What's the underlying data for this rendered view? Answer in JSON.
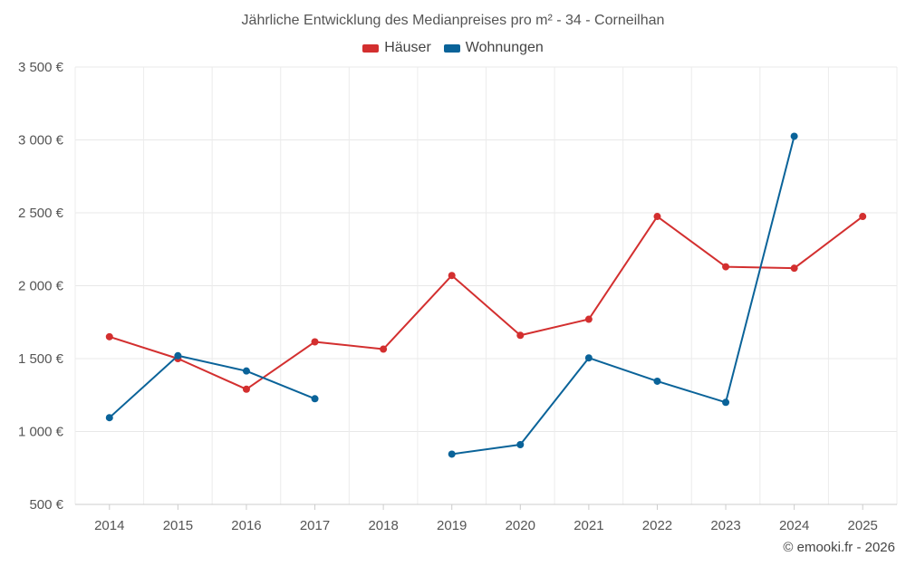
{
  "title": "Jährliche Entwicklung des Medianpreises pro m² - 34 - Corneilhan",
  "credit": "© emooki.fr - 2026",
  "chart_data": {
    "type": "line",
    "title": "Jährliche Entwicklung des Medianpreises pro m² - 34 - Corneilhan",
    "xlabel": "",
    "ylabel": "",
    "categories": [
      "2014",
      "2015",
      "2016",
      "2017",
      "2018",
      "2019",
      "2020",
      "2021",
      "2022",
      "2023",
      "2024",
      "2025"
    ],
    "ylim": [
      500,
      3500
    ],
    "y_ticks": [
      500,
      1000,
      1500,
      2000,
      2500,
      3000,
      3500
    ],
    "y_tick_labels": [
      "500 €",
      "1 000 €",
      "1 500 €",
      "2 000 €",
      "2 500 €",
      "3 000 €",
      "3 500 €"
    ],
    "grid": true,
    "legend_position": "top-center",
    "series": [
      {
        "name": "Häuser",
        "color": "#d32f2f",
        "values": [
          1650,
          1500,
          1290,
          1615,
          1565,
          2070,
          1660,
          1770,
          2475,
          2130,
          2120,
          2475
        ]
      },
      {
        "name": "Wohnungen",
        "color": "#0a6399",
        "values": [
          1095,
          1520,
          1415,
          1225,
          null,
          845,
          910,
          1505,
          1345,
          1200,
          3025,
          null
        ]
      }
    ]
  }
}
